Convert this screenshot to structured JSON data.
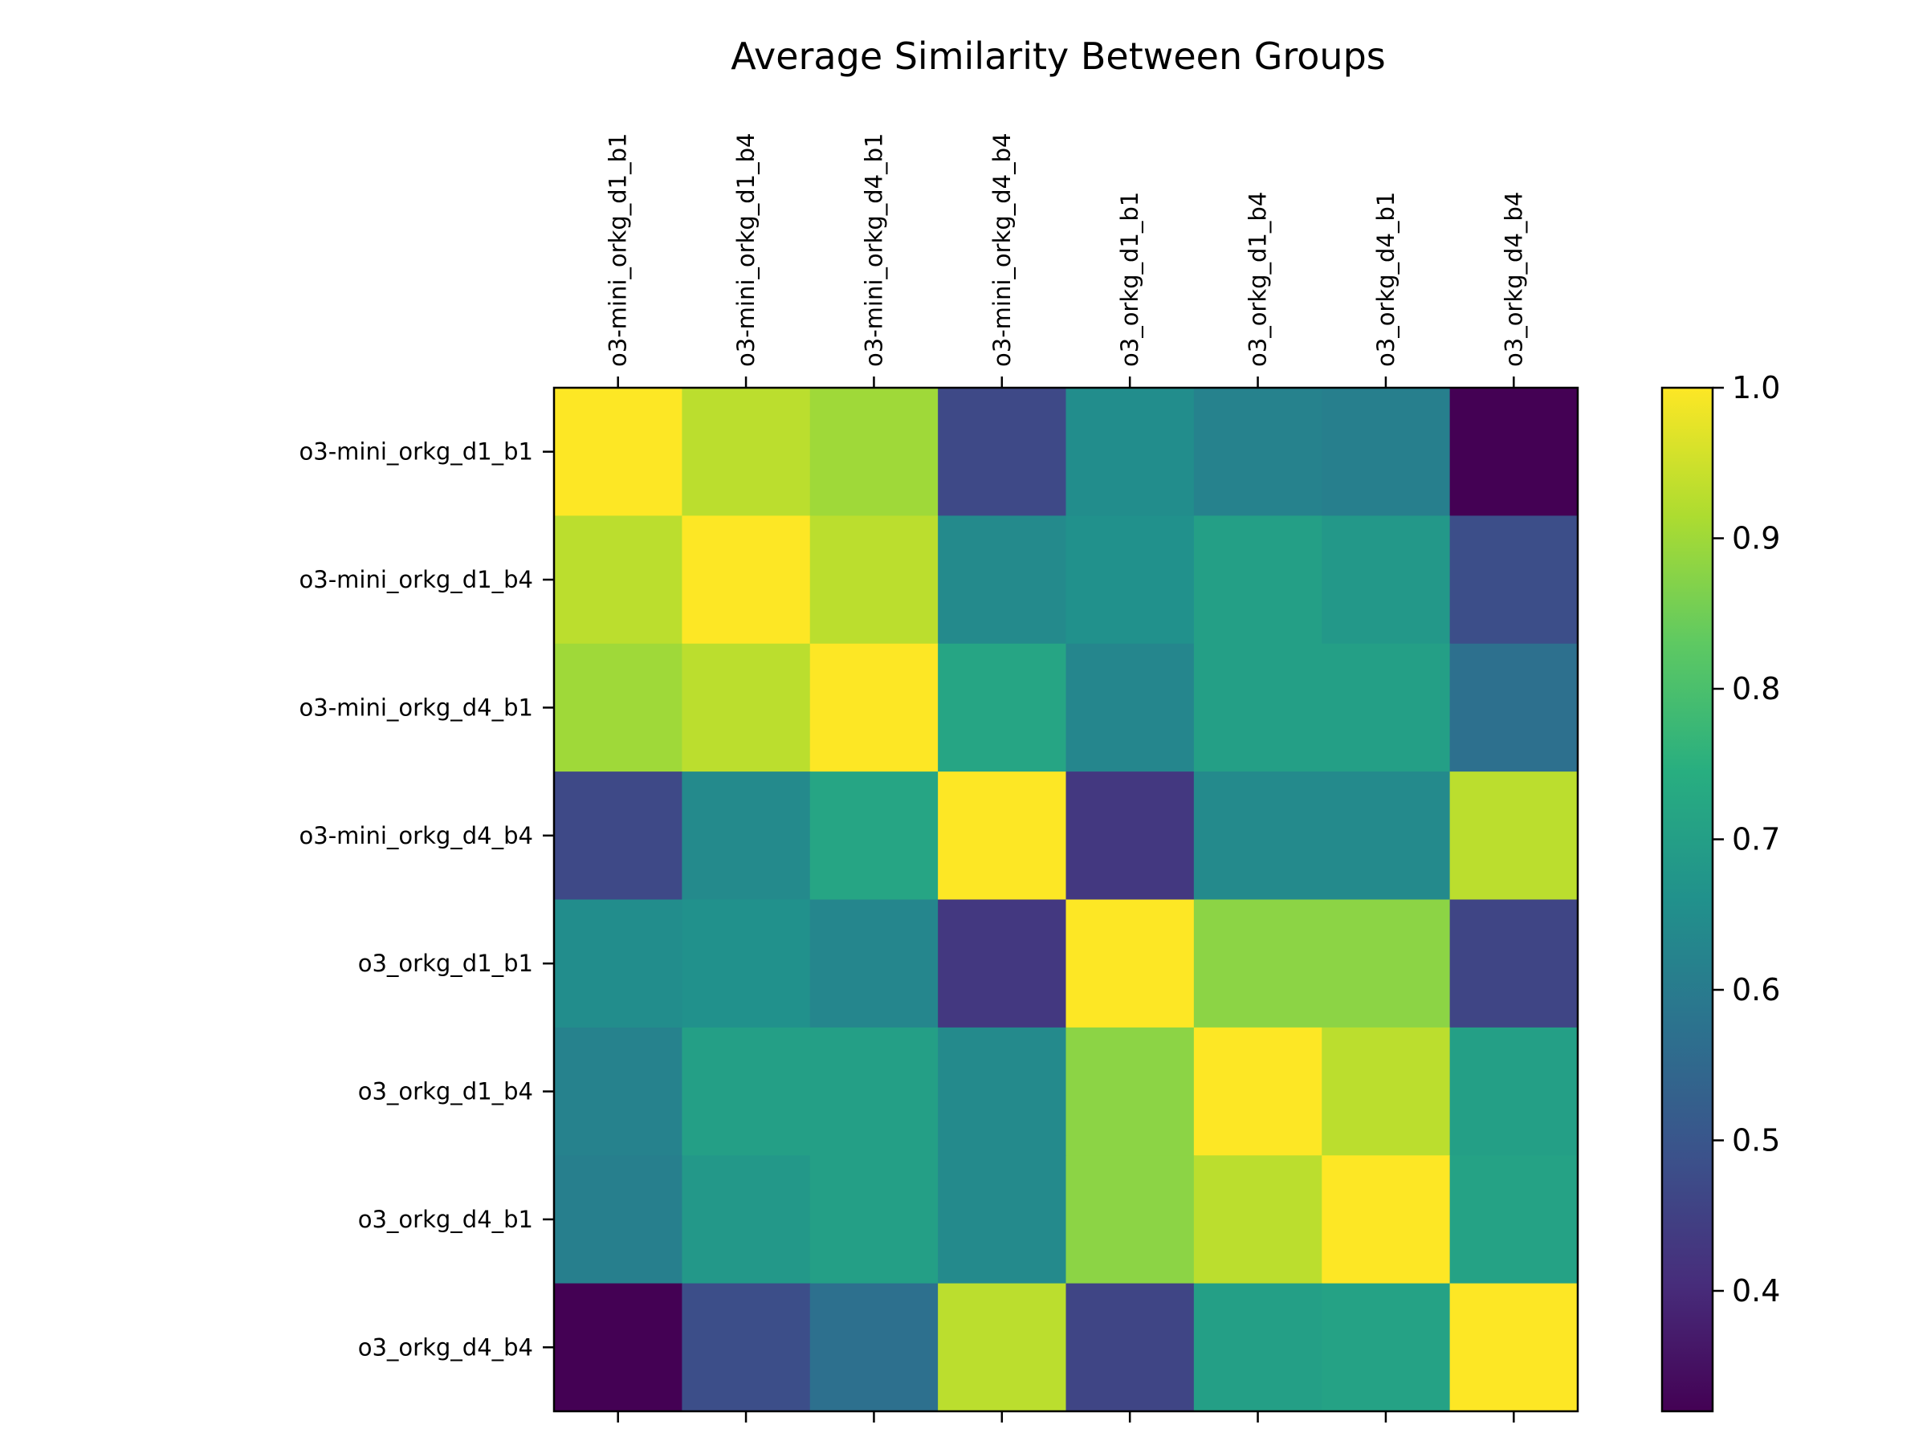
{
  "chart_data": {
    "type": "heatmap",
    "title": "Average Similarity Between Groups",
    "x_labels": [
      "o3-mini_orkg_d1_b1",
      "o3-mini_orkg_d1_b4",
      "o3-mini_orkg_d4_b1",
      "o3-mini_orkg_d4_b4",
      "o3_orkg_d1_b1",
      "o3_orkg_d1_b4",
      "o3_orkg_d4_b1",
      "o3_orkg_d4_b4"
    ],
    "y_labels": [
      "o3-mini_orkg_d1_b1",
      "o3-mini_orkg_d1_b4",
      "o3-mini_orkg_d4_b1",
      "o3-mini_orkg_d4_b4",
      "o3_orkg_d1_b1",
      "o3_orkg_d1_b4",
      "o3_orkg_d4_b1",
      "o3_orkg_d4_b4"
    ],
    "values": [
      [
        1.0,
        0.93,
        0.9,
        0.47,
        0.65,
        0.62,
        0.61,
        0.32
      ],
      [
        0.93,
        1.0,
        0.93,
        0.64,
        0.66,
        0.7,
        0.68,
        0.48
      ],
      [
        0.9,
        0.93,
        1.0,
        0.72,
        0.63,
        0.7,
        0.7,
        0.57
      ],
      [
        0.47,
        0.64,
        0.72,
        1.0,
        0.43,
        0.64,
        0.64,
        0.93
      ],
      [
        0.65,
        0.66,
        0.63,
        0.43,
        1.0,
        0.88,
        0.88,
        0.46
      ],
      [
        0.62,
        0.7,
        0.7,
        0.64,
        0.88,
        1.0,
        0.93,
        0.7
      ],
      [
        0.61,
        0.68,
        0.7,
        0.64,
        0.88,
        0.93,
        1.0,
        0.71
      ],
      [
        0.32,
        0.48,
        0.57,
        0.93,
        0.46,
        0.7,
        0.71,
        1.0
      ]
    ],
    "colormap": "viridis",
    "colorbar": {
      "range": [
        0.32,
        1.0
      ],
      "ticks": [
        0.4,
        0.5,
        0.6,
        0.7,
        0.8,
        0.9,
        1.0
      ],
      "tick_labels": [
        "0.4",
        "0.5",
        "0.6",
        "0.7",
        "0.8",
        "0.9",
        "1.0"
      ]
    },
    "x_tick_position": "top",
    "grid": false
  }
}
